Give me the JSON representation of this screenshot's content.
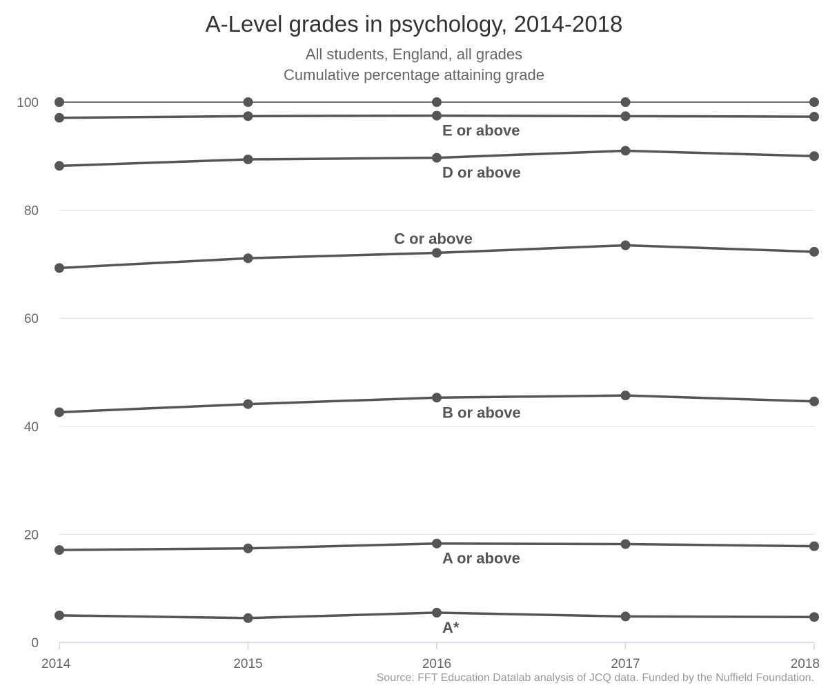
{
  "title": "A-Level grades in psychology, 2014-2018",
  "subtitle1": "All students, England, all grades",
  "subtitle2": "Cumulative percentage attaining grade",
  "source": "Source: FFT Education Datalab analysis of JCQ data. Funded by the Nuffield Foundation.",
  "colors": {
    "line": "#555555",
    "grid": "#e3e3e3",
    "axis": "#ccd6eb"
  },
  "chart_data": {
    "type": "line",
    "x": [
      "2014",
      "2015",
      "2016",
      "2017",
      "2018"
    ],
    "ylim": [
      0,
      100
    ],
    "yticks": [
      "0",
      "20",
      "40",
      "60",
      "80",
      "100"
    ],
    "grid": true,
    "legend": "none (series labelled directly on lines)",
    "series": [
      {
        "name": "",
        "values": [
          100,
          100,
          100,
          100,
          100
        ]
      },
      {
        "name": "E or above",
        "values": [
          97.1,
          97.4,
          97.5,
          97.4,
          97.3
        ]
      },
      {
        "name": "D or above",
        "values": [
          88.2,
          89.4,
          89.7,
          91.0,
          90.0
        ]
      },
      {
        "name": "C or above",
        "values": [
          69.3,
          71.1,
          72.1,
          73.5,
          72.3
        ]
      },
      {
        "name": "B or above",
        "values": [
          42.6,
          44.1,
          45.3,
          45.7,
          44.6
        ]
      },
      {
        "name": "A or above",
        "values": [
          17.1,
          17.4,
          18.3,
          18.2,
          17.8
        ]
      },
      {
        "name": "A*",
        "values": [
          5.0,
          4.5,
          5.5,
          4.8,
          4.7
        ]
      }
    ]
  }
}
